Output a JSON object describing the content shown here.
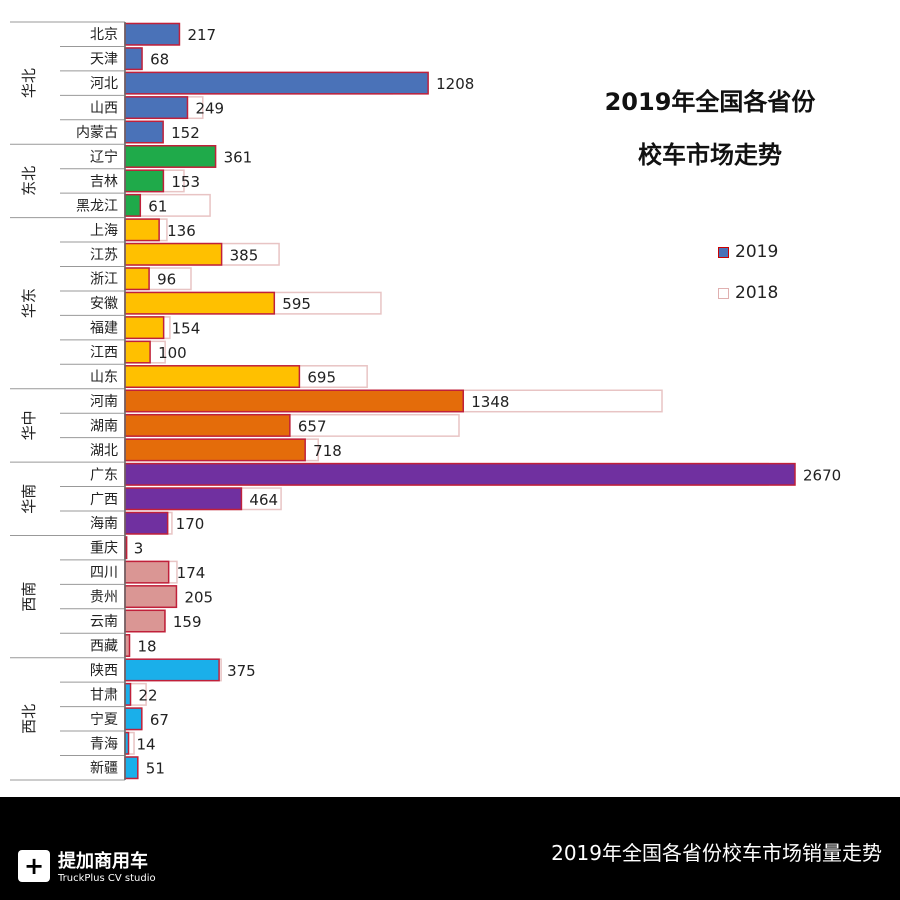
{
  "chart_data": {
    "type": "bar",
    "orientation": "horizontal",
    "title": "2019年全国各省份校车市场走势",
    "title_lines": [
      "2019年全国各省份",
      "校车市场走势"
    ],
    "legend": {
      "position": "right",
      "entries": [
        "2019",
        "2018"
      ]
    },
    "grid": false,
    "groups": [
      {
        "name": "华北",
        "color": "#4a72b8",
        "provinces": [
          "北京",
          "天津",
          "河北",
          "山西",
          "内蒙古"
        ]
      },
      {
        "name": "东北",
        "color": "#1faa4a",
        "provinces": [
          "辽宁",
          "吉林",
          "黑龙江"
        ]
      },
      {
        "name": "华东",
        "color": "#ffc000",
        "provinces": [
          "上海",
          "江苏",
          "浙江",
          "安徽",
          "福建",
          "江西",
          "山东"
        ]
      },
      {
        "name": "华中",
        "color": "#e46c0a",
        "provinces": [
          "河南",
          "湖南",
          "湖北"
        ]
      },
      {
        "name": "华南",
        "color": "#7030a0",
        "provinces": [
          "广东",
          "广西",
          "海南"
        ]
      },
      {
        "name": "西南",
        "color": "#da9694",
        "provinces": [
          "重庆",
          "四川",
          "贵州",
          "云南",
          "西藏"
        ]
      },
      {
        "name": "西北",
        "color": "#1aafea",
        "provinces": [
          "陕西",
          "甘肃",
          "宁夏",
          "青海",
          "新疆"
        ]
      }
    ],
    "series": [
      {
        "name": "2019",
        "values": [
          217,
          68,
          1208,
          249,
          152,
          361,
          153,
          61,
          136,
          385,
          96,
          595,
          154,
          100,
          695,
          1348,
          657,
          718,
          2670,
          464,
          170,
          3,
          174,
          205,
          159,
          18,
          375,
          22,
          67,
          14,
          51
        ]
      },
      {
        "name": "2018",
        "values": [
          215,
          60,
          1065,
          310,
          150,
          360,
          235,
          339,
          167,
          614,
          263,
          1020,
          179,
          160,
          965,
          2140,
          1331,
          770,
          2563,
          622,
          187,
          8,
          207,
          200,
          160,
          15,
          383,
          84,
          67,
          36,
          51
        ]
      }
    ],
    "xlim": [
      0,
      2700
    ]
  },
  "footer": {
    "caption": "2019年全国各省份校车市场销量走势",
    "brand": "提加商用车",
    "brand_sub": "TruckPlus CV studio",
    "logo_glyph": "+"
  }
}
